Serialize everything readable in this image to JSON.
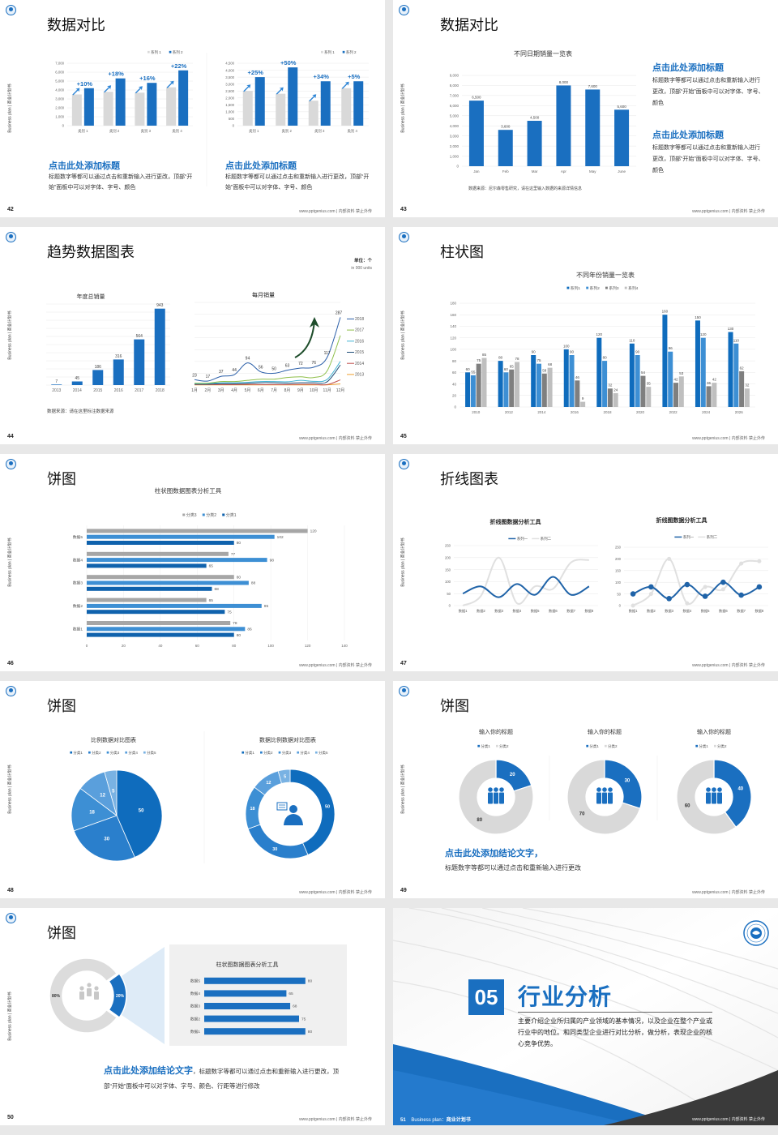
{
  "common": {
    "side_label": "Business plan | 商业计划书",
    "footer": "www.pptgenius.com | 内部资料 禁止外传",
    "logo": "school-emblem-icon"
  },
  "colors": {
    "primary": "#1a6fc0",
    "secondary": "#3d8fd4",
    "gray": "#d9d9d9",
    "dark_gray": "#7f7f7f",
    "accent_arrow": "#1e4d2b"
  },
  "slides": [
    {
      "page": "42",
      "title": "数据对比",
      "blocks": [
        {
          "heading": "点击此处添加标题",
          "body": "标题数字等都可以通过点击和重新输入进行更改，顶部“开始”面板中可以对字体、字号、颜色"
        },
        {
          "heading": "点击此处添加标题",
          "body": "标题数字等都可以通过点击和重新输入进行更改，顶部“开始”面板中可以对字体、字号、颜色"
        }
      ]
    },
    {
      "page": "43",
      "title": "数据对比",
      "source": "数据来源：尼尔森零售研究，请在这里输入数据的来源详情信息",
      "blocks": [
        {
          "heading": "点击此处添加标题",
          "body": "标题数字等都可以通过点击和重新输入进行更改，顶部“开始”面板中可以对字体、字号、颜色"
        },
        {
          "heading": "点击此处添加标题",
          "body": "标题数字等都可以通过点击和重新输入进行更改，顶部“开始”面板中可以对字体、字号、颜色"
        }
      ]
    },
    {
      "page": "44",
      "title": "趋势数据图表",
      "unit": "单位：个",
      "unit_en": "in 000 units",
      "source": "数据来源：请在这里标注数据来源"
    },
    {
      "page": "45",
      "title": "柱状图"
    },
    {
      "page": "46",
      "title": "饼图"
    },
    {
      "page": "47",
      "title": "折线图表"
    },
    {
      "page": "48",
      "title": "饼图"
    },
    {
      "page": "49",
      "title": "饼图",
      "conclusion": "点击此处添加结论文字，",
      "body": "标题数字等都可以通过点击和重新输入进行更改"
    },
    {
      "page": "50",
      "title": "饼图",
      "conclusion": "点击此处添加结论文字",
      "body": "，标题数字等都可以通过点击和重新输入进行更改，顶部“开始”面板中可以对字体、字号、颜色、行距等进行修改"
    },
    {
      "page": "51",
      "number": "05",
      "title": "行业分析",
      "body": "主要介绍企业所归属的产业领域的基本情况，以及企业在整个产业或行业中的地位。和同类型企业进行对比分析，做分析，表现企业的核心竞争优势。",
      "footer_label": "Business plan：",
      "footer_label_cn": "商业计划书"
    }
  ],
  "chart_data": [
    {
      "id": "c42a",
      "type": "bar",
      "title": "",
      "categories": [
        "类别 1",
        "类别 2",
        "类别 3",
        "类别 4"
      ],
      "series": [
        {
          "name": "系列 1",
          "values": [
            3500,
            3800,
            3700,
            4300
          ]
        },
        {
          "name": "系列 2",
          "values": [
            4200,
            5300,
            4800,
            6200
          ]
        }
      ],
      "annotations": [
        "+10%",
        "+18%",
        "+16%",
        "+22%"
      ],
      "ylim": [
        0,
        7000
      ],
      "ystep": 1000,
      "legend": "top-right",
      "grid": true
    },
    {
      "id": "c42b",
      "type": "bar",
      "title": "",
      "categories": [
        "类别 1",
        "类别 2",
        "类别 3",
        "类别 4"
      ],
      "series": [
        {
          "name": "系列 1",
          "values": [
            2500,
            2300,
            1800,
            2700
          ]
        },
        {
          "name": "系列 2",
          "values": [
            3500,
            4200,
            3200,
            3200
          ]
        }
      ],
      "annotations": [
        "+25%",
        "+50%",
        "+34%",
        "+5%"
      ],
      "ylim": [
        0,
        4500
      ],
      "ystep": 500,
      "legend": "top-right",
      "grid": true
    },
    {
      "id": "c43",
      "type": "bar",
      "title": "不同日期销量一览表",
      "categories": [
        "Jan",
        "Feb",
        "Mar",
        "Apr",
        "May",
        "June"
      ],
      "series": [
        {
          "values": [
            6500,
            3600,
            4500,
            8000,
            7600,
            5600
          ]
        }
      ],
      "ylim": [
        0,
        9000
      ],
      "ystep": 1000,
      "grid": true
    },
    {
      "id": "c44a",
      "type": "bar",
      "title": "年度总销量",
      "categories": [
        "2013",
        "2014",
        "2015",
        "2016",
        "2017",
        "2018"
      ],
      "series": [
        {
          "values": [
            7,
            45,
            186,
            316,
            564,
            943
          ]
        }
      ],
      "ylim": [
        0,
        1000
      ],
      "ystep": 100,
      "grid": true
    },
    {
      "id": "c44b",
      "type": "line",
      "title": "每月销量",
      "categories": [
        "1月",
        "2月",
        "3月",
        "4月",
        "5月",
        "6月",
        "7月",
        "8月",
        "9月",
        "10月",
        "11月",
        "12月"
      ],
      "series": [
        {
          "name": "2018",
          "color": "#2a5ea8",
          "values": [
            23,
            17,
            37,
            44,
            94,
            56,
            50,
            63,
            72,
            76,
            117,
            287
          ]
        },
        {
          "name": "2017",
          "color": "#8fbf4a",
          "values": [
            8,
            8,
            15,
            15,
            20,
            25,
            25,
            32,
            35,
            32,
            60,
            210
          ]
        },
        {
          "name": "2016",
          "color": "#41b3d3",
          "values": [
            6,
            6,
            10,
            10,
            12,
            15,
            15,
            14,
            20,
            16,
            24,
            100
          ]
        },
        {
          "name": "2015",
          "color": "#1f4e79",
          "values": [
            4,
            4,
            6,
            6,
            7,
            10,
            10,
            8,
            10,
            10,
            14,
            85
          ]
        },
        {
          "name": "2014",
          "color": "#c0504d",
          "values": [
            2,
            2,
            2,
            2,
            3,
            2,
            2,
            2,
            3,
            3,
            2,
            22
          ]
        },
        {
          "name": "2013",
          "color": "#f0a030",
          "values": [
            1,
            1,
            1,
            1,
            1,
            1,
            1,
            1,
            1,
            1,
            1,
            5
          ]
        }
      ],
      "labeled_series": "2018",
      "ylim": [
        0,
        350
      ],
      "ystep": 50,
      "legend": "right",
      "grid": true
    },
    {
      "id": "c45",
      "type": "bar",
      "title": "不同年份销量一览表",
      "categories": [
        "2010",
        "2012",
        "2014",
        "2016",
        "2018",
        "2020",
        "2022",
        "2024",
        "2026"
      ],
      "series": [
        {
          "name": "系列1",
          "values": [
            60,
            80,
            90,
            100,
            120,
            110,
            160,
            150,
            130
          ]
        },
        {
          "name": "系列2",
          "values": [
            55,
            60,
            75,
            90,
            80,
            90,
            96,
            120,
            110
          ]
        },
        {
          "name": "系列3",
          "values": [
            75,
            65,
            58,
            46,
            32,
            54,
            42,
            36,
            62
          ]
        },
        {
          "name": "系列4",
          "values": [
            85,
            78,
            68,
            9,
            24,
            35,
            53,
            42,
            32
          ]
        }
      ],
      "ylim": [
        0,
        180
      ],
      "ystep": 20,
      "legend": "top",
      "grid": true
    },
    {
      "id": "c46",
      "type": "bar",
      "orientation": "horizontal",
      "title": "柱状图数据图表分析工具",
      "categories": [
        "数据1",
        "数据2",
        "数据3",
        "数据4",
        "数据5"
      ],
      "series": [
        {
          "name": "分类3",
          "values": [
            78,
            65,
            80,
            77,
            120
          ]
        },
        {
          "name": "分类2",
          "values": [
            86,
            95,
            88,
            98,
            102
          ]
        },
        {
          "name": "分类1",
          "values": [
            80,
            75,
            68,
            65,
            80
          ]
        }
      ],
      "xlim": [
        0,
        140
      ],
      "xstep": 20,
      "legend": "top",
      "grid": true
    },
    {
      "id": "c47a",
      "type": "line",
      "smooth": true,
      "title": "折线图数据分析工具",
      "categories": [
        "数据1",
        "数据2",
        "数据3",
        "数据4",
        "数据5",
        "数据6",
        "数据7",
        "数据8"
      ],
      "series": [
        {
          "name": "系列一",
          "values": [
            50,
            80,
            35,
            90,
            45,
            120,
            45,
            80
          ]
        },
        {
          "name": "系列二",
          "values": [
            0,
            40,
            200,
            10,
            80,
            70,
            180,
            190
          ]
        }
      ],
      "ylim": [
        0,
        250
      ],
      "ystep": 50,
      "legend": "top",
      "grid": true
    },
    {
      "id": "c47b",
      "type": "line",
      "markers": true,
      "title": "折线图数据分析工具",
      "categories": [
        "数据1",
        "数据2",
        "数据3",
        "数据4",
        "数据5",
        "数据6",
        "数据7",
        "数据8"
      ],
      "series": [
        {
          "name": "系列一",
          "values": [
            50,
            80,
            30,
            90,
            40,
            100,
            45,
            80
          ]
        },
        {
          "name": "系列二",
          "values": [
            0,
            50,
            200,
            10,
            80,
            70,
            180,
            190
          ]
        }
      ],
      "ylim": [
        0,
        250
      ],
      "ystep": 50,
      "legend": "top",
      "grid": true
    },
    {
      "id": "c48a",
      "type": "pie",
      "title": "比例数据对比图表",
      "categories": [
        "分类1",
        "分类2",
        "分类3",
        "分类4",
        "分类5"
      ],
      "values": [
        50,
        30,
        18,
        12,
        5
      ],
      "legend": "top"
    },
    {
      "id": "c48b",
      "type": "pie",
      "donut": true,
      "title": "数据比例数据对比图表",
      "categories": [
        "分类1",
        "分类2",
        "分类3",
        "分类4",
        "分类5"
      ],
      "values": [
        50,
        30,
        18,
        12,
        5
      ],
      "legend": "top",
      "center_icon": "customer-service-person-icon"
    },
    {
      "id": "c49a",
      "type": "pie",
      "donut": true,
      "title": "输入你的标题",
      "categories": [
        "分类1",
        "分类2"
      ],
      "values": [
        20,
        80
      ],
      "legend": "top",
      "center_icon": "team-icon"
    },
    {
      "id": "c49b",
      "type": "pie",
      "donut": true,
      "title": "输入你的标题",
      "categories": [
        "分类1",
        "分类2"
      ],
      "values": [
        30,
        70
      ],
      "legend": "top",
      "center_icon": "team-icon"
    },
    {
      "id": "c49c",
      "type": "pie",
      "donut": true,
      "title": "输入你的标题",
      "categories": [
        "分类1",
        "分类2"
      ],
      "values": [
        40,
        60
      ],
      "legend": "top",
      "center_icon": "team-icon"
    },
    {
      "id": "c50a",
      "type": "pie",
      "donut": true,
      "title": "",
      "values": [
        20,
        80
      ],
      "value_labels": [
        "20%",
        "80%"
      ],
      "center_icon": "people-icon"
    },
    {
      "id": "c50b",
      "type": "bar",
      "orientation": "horizontal",
      "title": "柱状图数据图表分析工具",
      "categories": [
        "数据1",
        "数据2",
        "数据3",
        "数据4",
        "数据5"
      ],
      "series": [
        {
          "values": [
            80,
            75,
            68,
            65,
            80
          ]
        }
      ],
      "xlim": [
        0,
        100
      ]
    }
  ]
}
